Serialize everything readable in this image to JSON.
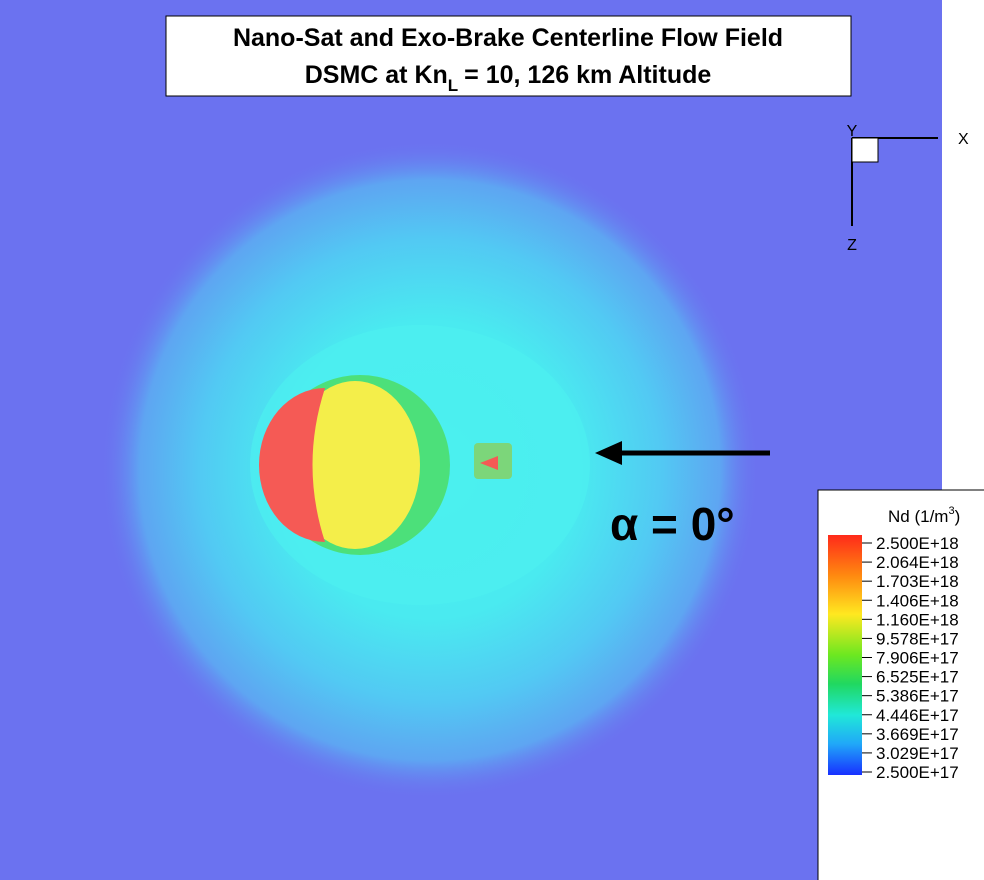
{
  "title": {
    "line1": "Nano-Sat and Exo-Brake Centerline Flow Field",
    "line2_start": "DSMC at Kn",
    "line2_sub": "L",
    "line2_end": "= 10, 126 km Altitude"
  },
  "axes": {
    "y": "Y",
    "x": "X",
    "z": "Z"
  },
  "annotation": "α =  0°",
  "legend": {
    "title_start": "Nd (1/m",
    "title_sup": "3",
    "title_end": ")",
    "levels": [
      "2.500E+18",
      "2.064E+18",
      "1.703E+18",
      "1.406E+18",
      "1.160E+18",
      "9.578E+17",
      "7.906E+17",
      "6.525E+17",
      "5.386E+17",
      "4.446E+17",
      "3.669E+17",
      "3.029E+17",
      "2.500E+17"
    ]
  }
}
